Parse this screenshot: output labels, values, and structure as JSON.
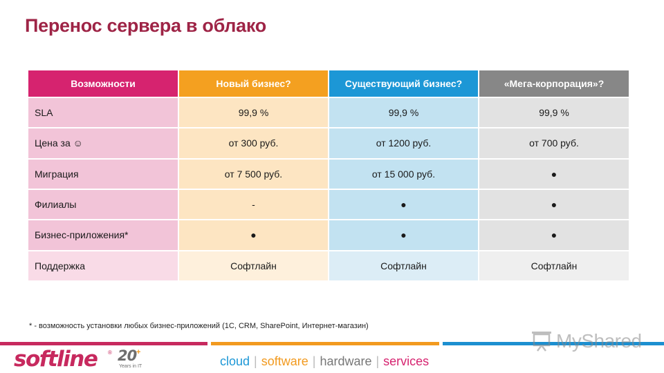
{
  "slide": {
    "title": "Перенос сервера в облако",
    "footnote": "* - возможность установки любых бизнес-приложений (1С, CRM, SharePoint, Интернет-магазин)"
  },
  "table": {
    "headers": [
      "Возможности",
      "Новый бизнес?",
      "Существующий бизнес?",
      "«Мега-корпорация»?"
    ],
    "rows": [
      [
        "SLA",
        "99,9 %",
        "99,9 %",
        "99,9 %"
      ],
      [
        "Цена за ☺",
        "от 300 руб.",
        "от 1200 руб.",
        "от 700 руб."
      ],
      [
        "Миграция",
        "от 7 500 руб.",
        "от 15 000 руб.",
        "●"
      ],
      [
        "Филиалы",
        "-",
        "●",
        "●"
      ],
      [
        "Бизнес-приложения*",
        "●",
        "●",
        "●"
      ],
      [
        "Поддержка",
        "Софтлайн",
        "Софтлайн",
        "Софтлайн"
      ]
    ]
  },
  "footer": {
    "logo": "softline",
    "logo_mark": "®",
    "anniversary_number": "20",
    "anniversary_plus": "+",
    "anniversary_sub": "Years in IT",
    "tagline": {
      "cloud": "cloud",
      "software": "software",
      "hardware": "hardware",
      "services": "services",
      "separator": "|"
    },
    "watermark": "MyShared"
  },
  "colors": {
    "title": "#9e2446",
    "header_features": "#d6236f",
    "header_new": "#f4a020",
    "header_existing": "#1c97d6",
    "header_mega": "#878787",
    "brand": "#c7295e"
  }
}
